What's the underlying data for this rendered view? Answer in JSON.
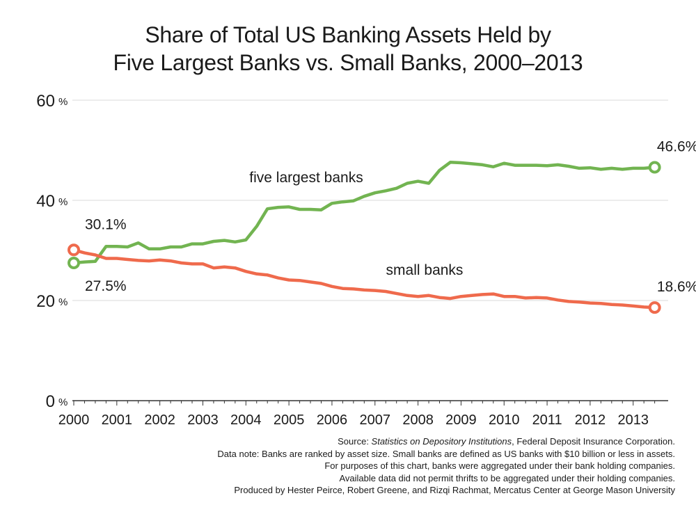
{
  "title": {
    "line1": "Share of Total US Banking Assets Held by",
    "line2": "Five Largest Banks vs. Small Banks, 2000–2013"
  },
  "footnotes": {
    "source_prefix": "Source: ",
    "source_title": "Statistics on Depository Institutions",
    "source_suffix": ", Federal Deposit Insurance Corporation.",
    "note1": "Data note: Banks are ranked by asset size. Small banks are defined as US banks with $10 billion or less in assets.",
    "note2": "For purposes of this chart, banks were aggregated under their bank holding companies.",
    "note3": "Available data did not permit thrifts to be aggregated under their holding companies.",
    "credit": "Produced by Hester Peirce, Robert Greene, and Rizqi Rachmat, Mercatus Center at George Mason University"
  },
  "chart_data": {
    "type": "line",
    "title": "Share of Total US Banking Assets Held by Five Largest Banks vs. Small Banks, 2000–2013",
    "xlabel": "",
    "ylabel": "",
    "x": [
      2000,
      2000.25,
      2000.5,
      2000.75,
      2001,
      2001.25,
      2001.5,
      2001.75,
      2002,
      2002.25,
      2002.5,
      2002.75,
      2003,
      2003.25,
      2003.5,
      2003.75,
      2004,
      2004.25,
      2004.5,
      2004.75,
      2005,
      2005.25,
      2005.5,
      2005.75,
      2006,
      2006.25,
      2006.5,
      2006.75,
      2007,
      2007.25,
      2007.5,
      2007.75,
      2008,
      2008.25,
      2008.5,
      2008.75,
      2009,
      2009.25,
      2009.5,
      2009.75,
      2010,
      2010.25,
      2010.5,
      2010.75,
      2011,
      2011.25,
      2011.5,
      2011.75,
      2012,
      2012.25,
      2012.5,
      2012.75,
      2013,
      2013.25,
      2013.5
    ],
    "series": [
      {
        "name": "five largest banks",
        "color": "#72b451",
        "values": [
          27.5,
          27.7,
          27.8,
          30.8,
          30.8,
          30.7,
          31.5,
          30.3,
          30.3,
          30.7,
          30.7,
          31.3,
          31.3,
          31.8,
          32.0,
          31.7,
          32.1,
          34.8,
          38.3,
          38.6,
          38.7,
          38.2,
          38.2,
          38.1,
          39.4,
          39.7,
          39.9,
          40.8,
          41.5,
          41.9,
          42.4,
          43.4,
          43.8,
          43.4,
          46.0,
          47.6,
          47.5,
          47.3,
          47.1,
          46.7,
          47.4,
          47.0,
          47.0,
          47.0,
          46.9,
          47.1,
          46.8,
          46.4,
          46.5,
          46.2,
          46.4,
          46.2,
          46.4,
          46.4,
          46.6
        ]
      },
      {
        "name": "small banks",
        "color": "#ef6a4c",
        "values": [
          30.1,
          29.5,
          29.1,
          28.4,
          28.4,
          28.2,
          28.0,
          27.9,
          28.1,
          27.9,
          27.5,
          27.3,
          27.3,
          26.5,
          26.7,
          26.5,
          25.8,
          25.3,
          25.1,
          24.5,
          24.1,
          24.0,
          23.7,
          23.4,
          22.8,
          22.4,
          22.3,
          22.1,
          22.0,
          21.8,
          21.4,
          21.0,
          20.8,
          21.0,
          20.6,
          20.4,
          20.8,
          21.0,
          21.2,
          21.3,
          20.8,
          20.8,
          20.5,
          20.6,
          20.5,
          20.1,
          19.8,
          19.7,
          19.5,
          19.4,
          19.2,
          19.1,
          18.9,
          18.7,
          18.6
        ]
      }
    ],
    "series_labels": [
      "five largest banks",
      "small banks"
    ],
    "endpoint_labels": [
      {
        "series": 0,
        "point": "first",
        "text": "27.5%"
      },
      {
        "series": 0,
        "point": "last",
        "text": "46.6%"
      },
      {
        "series": 1,
        "point": "first",
        "text": "30.1%"
      },
      {
        "series": 1,
        "point": "last",
        "text": "18.6%"
      }
    ],
    "xlim": [
      2000,
      2013.7
    ],
    "ylim": [
      0,
      60
    ],
    "y_ticks": [
      0,
      20,
      40,
      60
    ],
    "y_tick_labels": [
      "0",
      "20",
      "40",
      "60"
    ],
    "y_tick_unit": "%",
    "x_ticks": [
      2000,
      2001,
      2002,
      2003,
      2004,
      2005,
      2006,
      2007,
      2008,
      2009,
      2010,
      2011,
      2012,
      2013
    ],
    "x_tick_labels": [
      "2000",
      "2001",
      "2002",
      "2003",
      "2004",
      "2005",
      "2006",
      "2007",
      "2008",
      "2009",
      "2010",
      "2011",
      "2012",
      "2013"
    ],
    "grid": true,
    "grid_color": "#d9d9d9",
    "axis_color": "#333333"
  }
}
